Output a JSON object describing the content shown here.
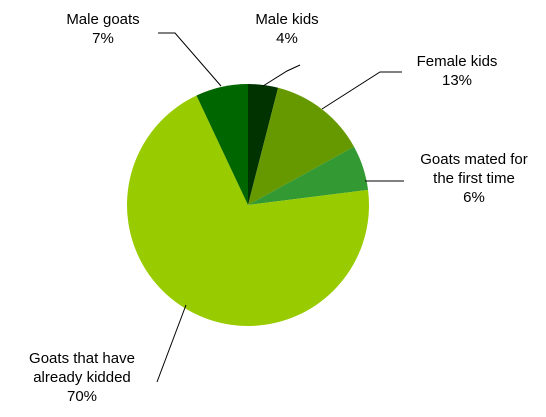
{
  "chart_data": {
    "type": "pie",
    "slices": [
      {
        "label": [
          "Male kids"
        ],
        "value_label": "4%",
        "value": 4,
        "color": "#003300"
      },
      {
        "label": [
          "Female kids"
        ],
        "value_label": "13%",
        "value": 13,
        "color": "#669900"
      },
      {
        "label": [
          "Goats mated for",
          "the first time"
        ],
        "value_label": "6%",
        "value": 6,
        "color": "#339933"
      },
      {
        "label": [
          "Goats that have",
          "already kidded"
        ],
        "value_label": "70%",
        "value": 70,
        "color": "#99cc00"
      },
      {
        "label": [
          "Male goats"
        ],
        "value_label": "7%",
        "value": 7,
        "color": "#006600"
      }
    ]
  }
}
